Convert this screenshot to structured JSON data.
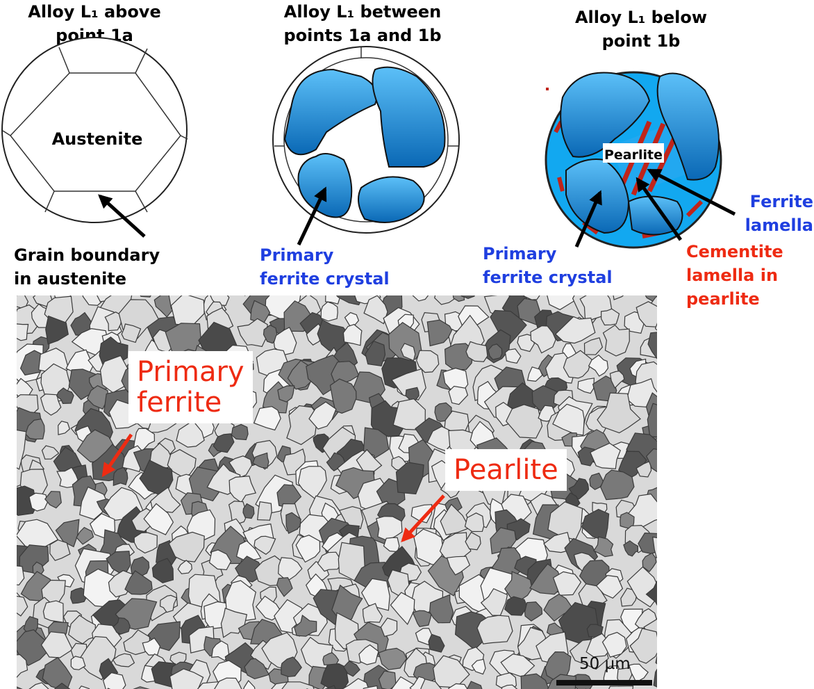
{
  "panels": {
    "above": {
      "title_line1": "Alloy L₁ above",
      "title_line2": "point 1a",
      "center_label": "Austenite",
      "boundary_line1": "Grain boundary",
      "boundary_line2": "in austenite"
    },
    "between": {
      "title_line1": "Alloy L₁ between",
      "title_line2": "points 1a and 1b",
      "crystal_line1": "Primary",
      "crystal_line2": "ferrite crystal"
    },
    "below": {
      "title_line1": "Alloy L₁ below",
      "title_line2": "point 1b",
      "pearlite_label": "Pearlite",
      "crystal_line1": "Primary",
      "crystal_line2": "ferrite crystal",
      "ferrite_line1": "Ferrite",
      "ferrite_line2": "lamella",
      "cementite_line1": "Cementite",
      "cementite_line2": "lamella in",
      "cementite_line3": "pearlite"
    }
  },
  "micrograph": {
    "primary_ferrite_line1": "Primary",
    "primary_ferrite_line2": "ferrite",
    "pearlite_label": "Pearlite",
    "scale_label": "50 µm"
  },
  "colors": {
    "ferrite_blue": "#1279c8",
    "ferrite_light": "#5cc0f8",
    "cementite_red": "#c0241a",
    "label_blue": "#1f3fe0",
    "label_red": "#ee2b12"
  }
}
